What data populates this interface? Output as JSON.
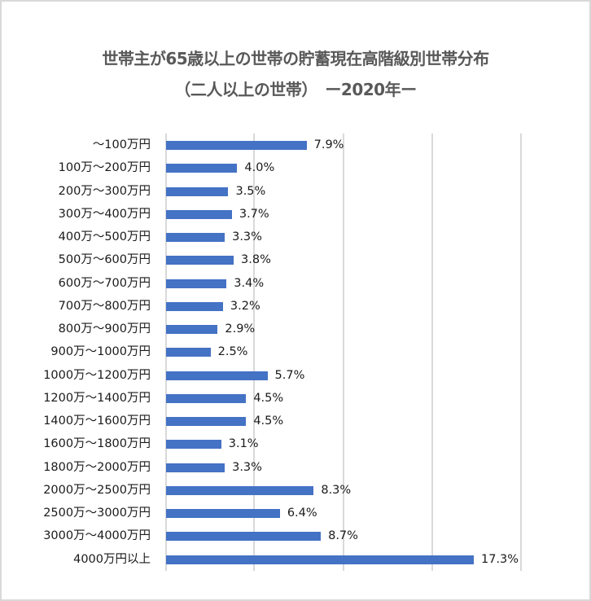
{
  "chart_data": {
    "type": "bar",
    "orientation": "horizontal",
    "title": "世帯主が65歳以上の世帯の貯蓄現在高階級別世帯分布",
    "subtitle": "（二人以上の世帯）　ー2020年ー",
    "xlabel": "",
    "ylabel": "",
    "xlim": [
      0,
      20
    ],
    "grid": true,
    "gridlines_at": [
      0,
      5,
      10,
      15,
      20
    ],
    "legend": null,
    "bar_color": "#4472C4",
    "value_format": "percent_1dp",
    "categories": [
      "～100万円",
      "100万～200万円",
      "200万～300万円",
      "300万～400万円",
      "400万～500万円",
      "500万～600万円",
      "600万～700万円",
      "700万～800万円",
      "800万～900万円",
      "900万～1000万円",
      "1000万～1200万円",
      "1200万～1400万円",
      "1400万～1600万円",
      "1600万～1800万円",
      "1800万～2000万円",
      "2000万～2500万円",
      "2500万～3000万円",
      "3000万～4000万円",
      "4000万円以上"
    ],
    "values": [
      7.9,
      4.0,
      3.5,
      3.7,
      3.3,
      3.8,
      3.4,
      3.2,
      2.9,
      2.5,
      5.7,
      4.5,
      4.5,
      3.1,
      3.3,
      8.3,
      6.4,
      8.7,
      17.3
    ],
    "labels": [
      "7.9%",
      "4.0%",
      "3.5%",
      "3.7%",
      "3.3%",
      "3.8%",
      "3.4%",
      "3.2%",
      "2.9%",
      "2.5%",
      "5.7%",
      "4.5%",
      "4.5%",
      "3.1%",
      "3.3%",
      "8.3%",
      "6.4%",
      "8.7%",
      "17.3%"
    ]
  }
}
